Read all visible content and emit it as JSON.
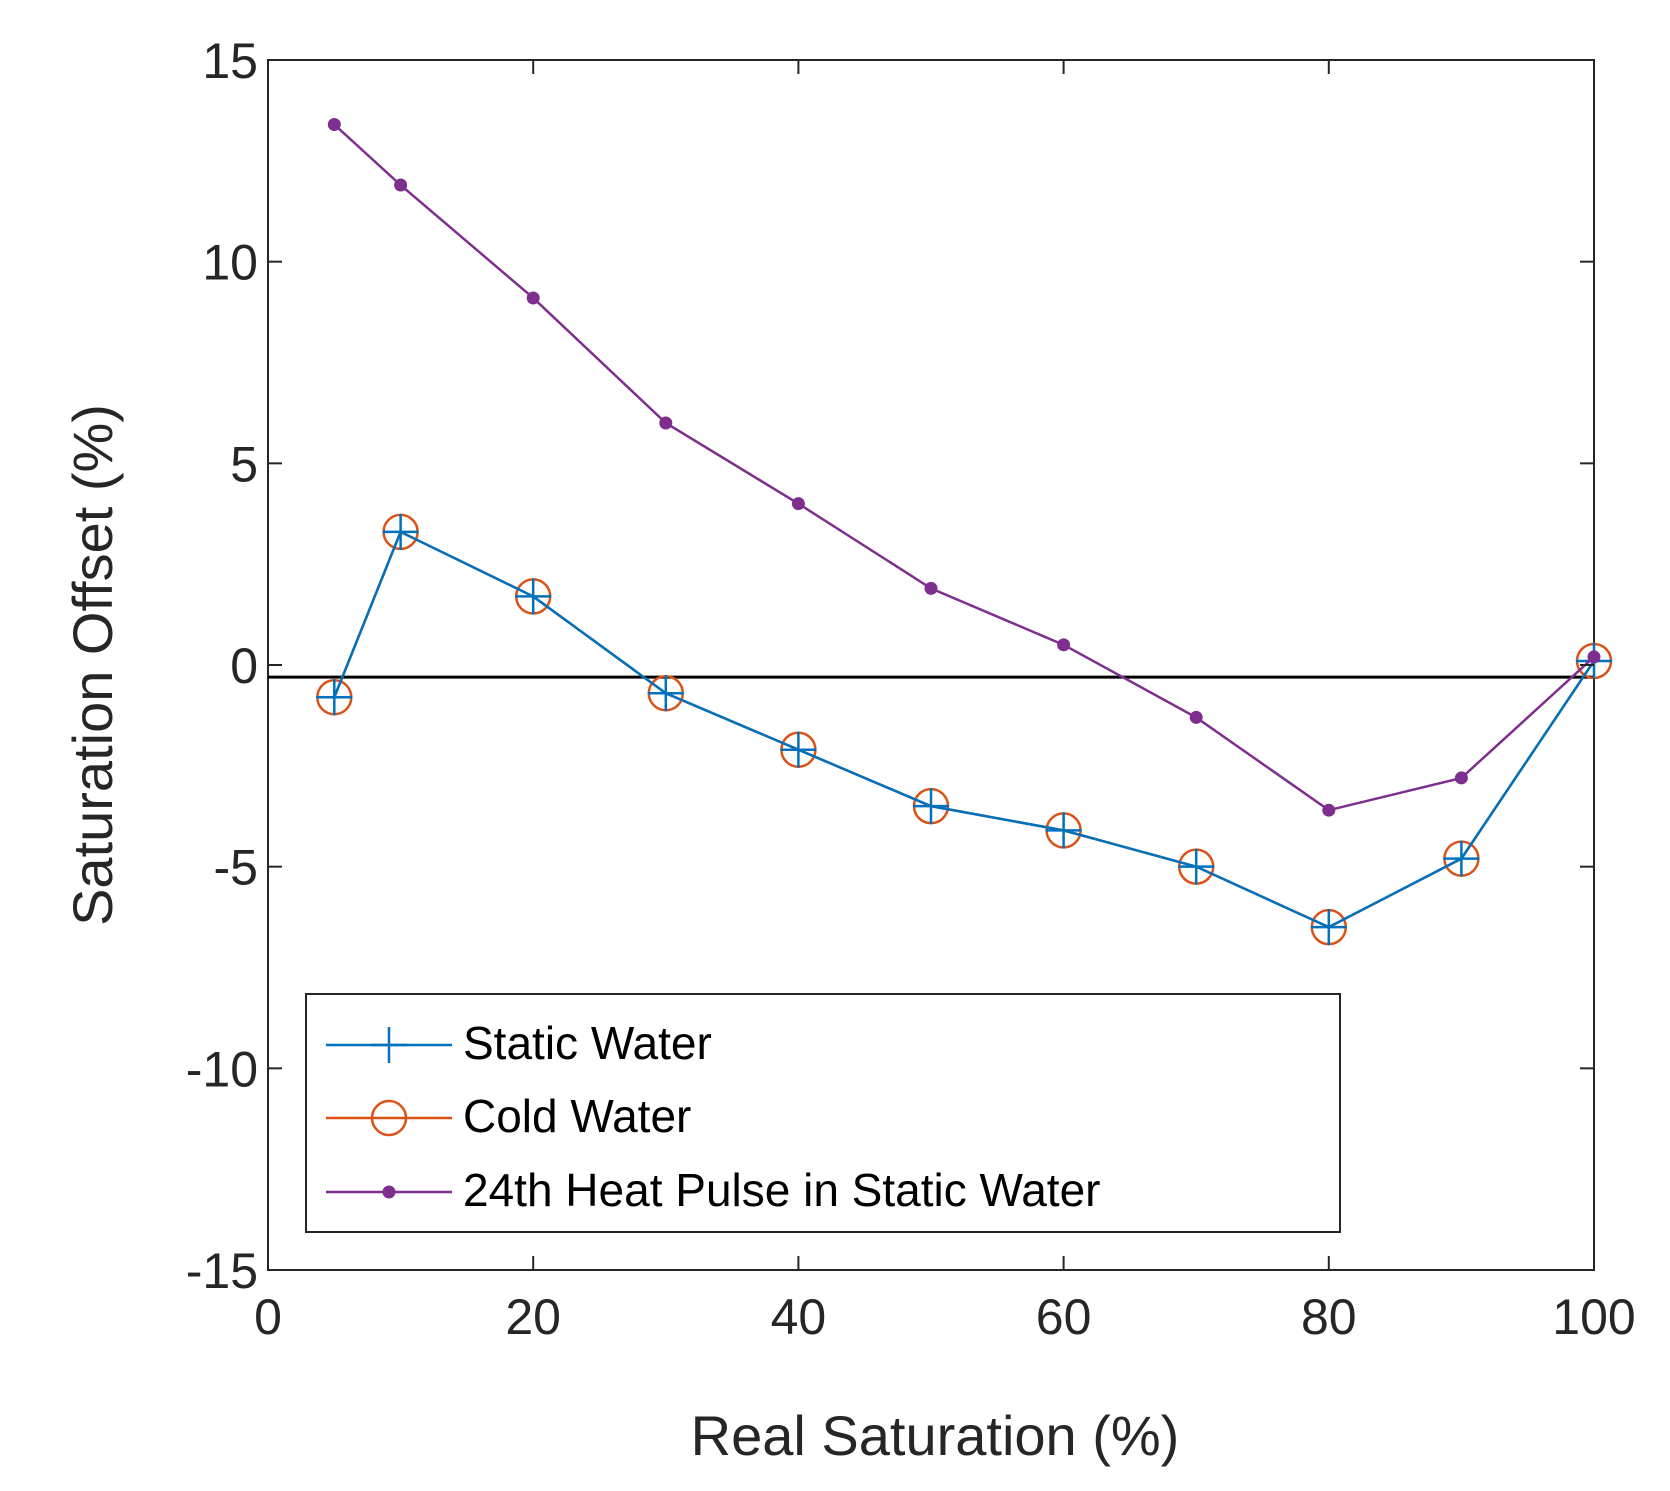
{
  "chart_data": {
    "type": "line",
    "xlabel": "Real Saturation (%)",
    "ylabel": "Saturation Offset (%)",
    "xlim": [
      0,
      100
    ],
    "ylim": [
      -15,
      15
    ],
    "xticks": [
      "0",
      "20",
      "40",
      "60",
      "80",
      "100"
    ],
    "yticks": [
      "15",
      "10",
      "5",
      "0",
      "-5",
      "-10",
      "-15"
    ],
    "grid": false,
    "legend_position": "bottom-left",
    "reference_line": {
      "y": -0.3,
      "color": "#000000"
    },
    "series": [
      {
        "name": "Static Water",
        "color": "#0072BD",
        "marker": "plus",
        "x": [
          5,
          10,
          20,
          30,
          40,
          50,
          60,
          70,
          80,
          90,
          100
        ],
        "y": [
          -0.8,
          3.3,
          1.7,
          -0.7,
          -2.1,
          -3.5,
          -4.1,
          -5.0,
          -6.5,
          -4.8,
          0.1
        ]
      },
      {
        "name": "Cold Water",
        "color": "#D95319",
        "marker": "circle",
        "x": [
          5,
          10,
          20,
          30,
          40,
          50,
          60,
          70,
          80,
          90,
          100
        ],
        "y": [
          -0.8,
          3.3,
          1.7,
          -0.7,
          -2.1,
          -3.5,
          -4.1,
          -5.0,
          -6.5,
          -4.8,
          0.1
        ]
      },
      {
        "name": "24th Heat Pulse in Static Water",
        "color": "#7E2F8E",
        "marker": "dot",
        "x": [
          5,
          10,
          20,
          30,
          40,
          50,
          60,
          70,
          80,
          90,
          100
        ],
        "y": [
          13.4,
          11.9,
          9.1,
          6.0,
          4.0,
          1.9,
          0.5,
          -1.3,
          -3.6,
          -2.8,
          0.2
        ]
      }
    ]
  }
}
